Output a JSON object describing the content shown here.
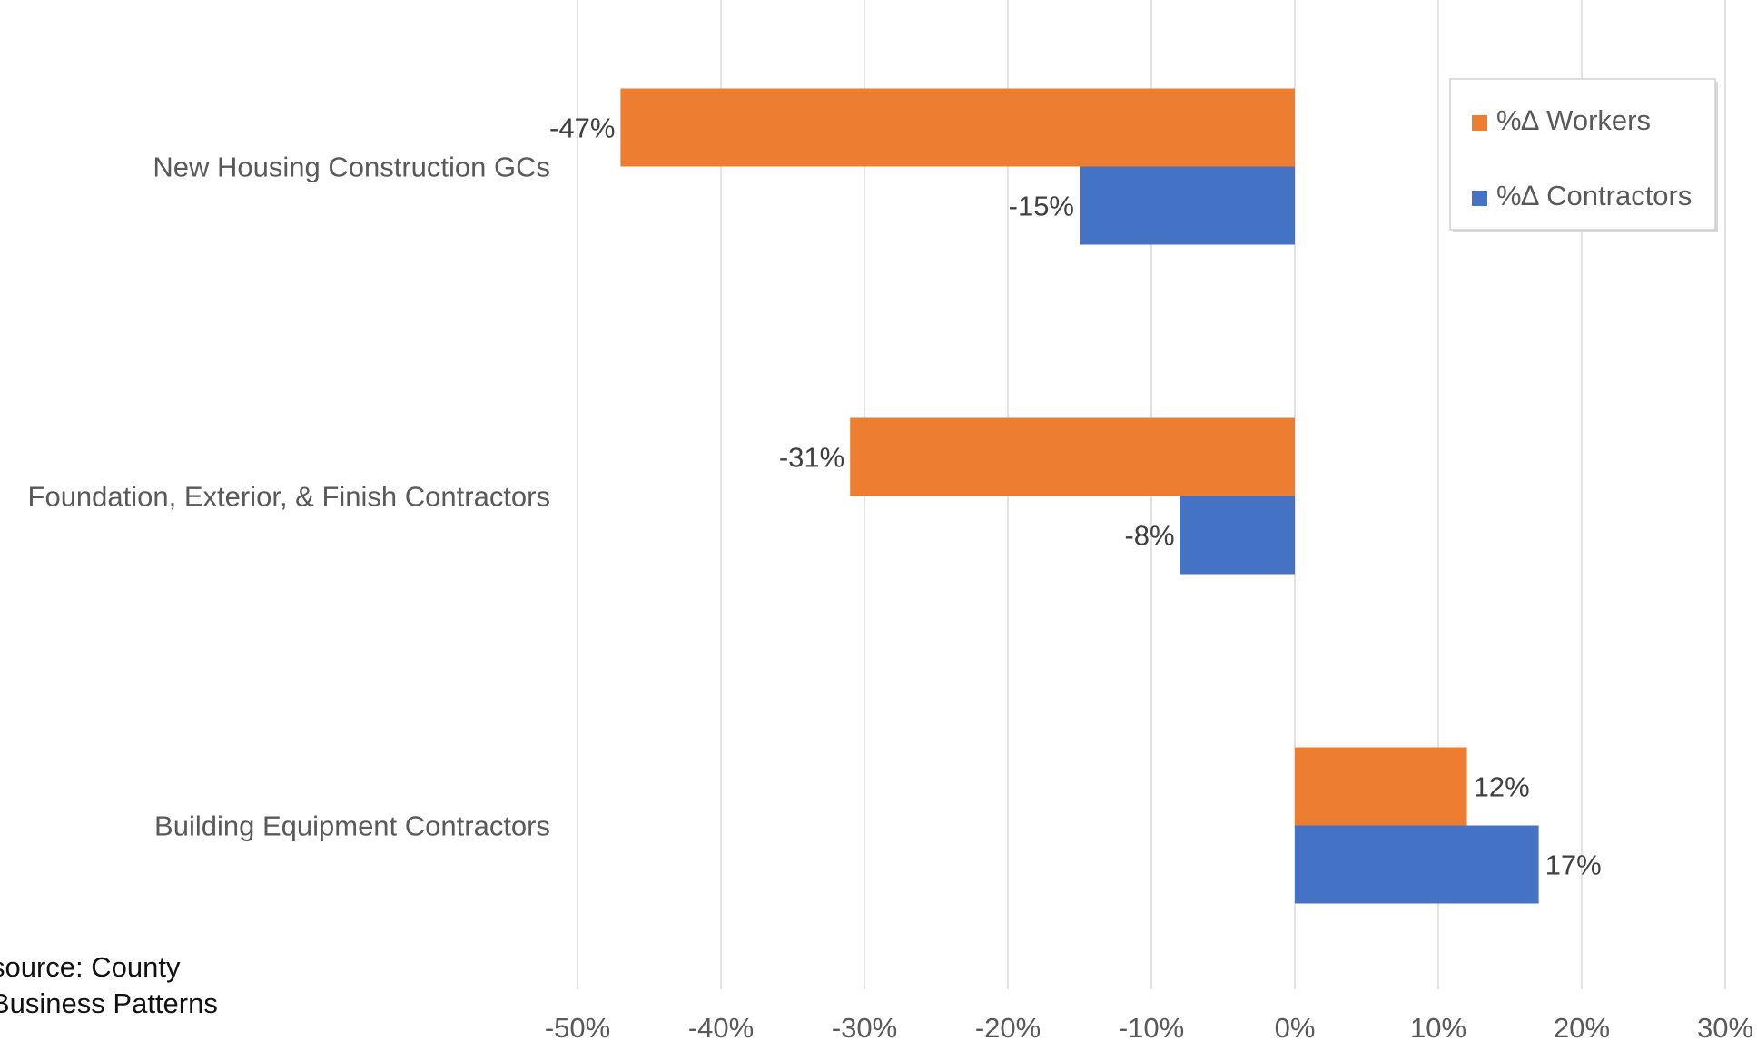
{
  "chart_data": {
    "type": "bar",
    "orientation": "horizontal",
    "categories": [
      "New Housing Construction GCs",
      "Foundation, Exterior, & Finish Contractors",
      "Building Equipment Contractors"
    ],
    "series": [
      {
        "name": "%∆ Workers",
        "color": "#ED7D31",
        "values": [
          -47,
          -31,
          12
        ],
        "labels": [
          "-47%",
          "-31%",
          "12%"
        ]
      },
      {
        "name": "%∆ Contractors",
        "color": "#4472C4",
        "values": [
          -15,
          -8,
          17
        ],
        "labels": [
          "-15%",
          "-8%",
          "17%"
        ]
      }
    ],
    "xlim": [
      -50,
      30
    ],
    "x_ticks": [
      "-50%",
      "-40%",
      "-30%",
      "-20%",
      "-10%",
      "0%",
      "10%",
      "20%",
      "30%"
    ],
    "grid": true,
    "legend_position": "top-right"
  },
  "source_note": {
    "line1": "source: County",
    "line2": "Business Patterns"
  }
}
